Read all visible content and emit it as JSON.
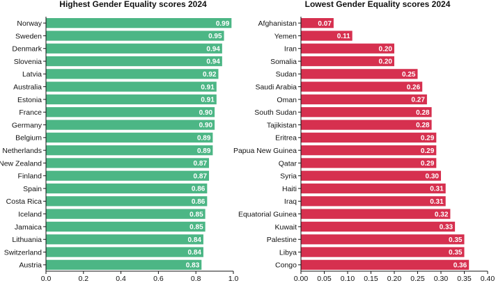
{
  "chart_data": [
    {
      "type": "bar",
      "orientation": "horizontal",
      "title": "Highest Gender Equality scores 2024",
      "categories": [
        "Norway",
        "Sweden",
        "Denmark",
        "Slovenia",
        "Latvia",
        "Australia",
        "Estonia",
        "France",
        "Germany",
        "Belgium",
        "Netherlands",
        "New Zealand",
        "Finland",
        "Spain",
        "Costa Rica",
        "Iceland",
        "Jamaica",
        "Lithuania",
        "Switzerland",
        "Austria"
      ],
      "values": [
        0.99,
        0.95,
        0.94,
        0.94,
        0.92,
        0.91,
        0.91,
        0.9,
        0.9,
        0.89,
        0.89,
        0.87,
        0.87,
        0.86,
        0.86,
        0.85,
        0.85,
        0.84,
        0.84,
        0.83
      ],
      "value_labels": [
        "0.99",
        "0.95",
        "0.94",
        "0.94",
        "0.92",
        "0.91",
        "0.91",
        "0.90",
        "0.90",
        "0.89",
        "0.89",
        "0.87",
        "0.87",
        "0.86",
        "0.86",
        "0.85",
        "0.85",
        "0.84",
        "0.84",
        "0.83"
      ],
      "xlim": [
        0,
        1.0
      ],
      "xticks": [
        0.0,
        0.2,
        0.4,
        0.6,
        0.8,
        1.0
      ],
      "xtick_labels": [
        "0.0",
        "0.2",
        "0.4",
        "0.6",
        "0.8",
        "1.0"
      ],
      "color": "#4cb685",
      "xlabel": "",
      "ylabel": ""
    },
    {
      "type": "bar",
      "orientation": "horizontal",
      "title": "Lowest Gender Equality scores 2024",
      "categories": [
        "Afghanistan",
        "Yemen",
        "Iran",
        "Somalia",
        "Sudan",
        "Saudi Arabia",
        "Oman",
        "South Sudan",
        "Tajikistan",
        "Eritrea",
        "Papua New Guinea",
        "Qatar",
        "Syria",
        "Haiti",
        "Iraq",
        "Equatorial Guinea",
        "Kuwait",
        "Palestine",
        "Libya",
        "Congo"
      ],
      "values": [
        0.07,
        0.11,
        0.2,
        0.2,
        0.25,
        0.26,
        0.27,
        0.28,
        0.28,
        0.29,
        0.29,
        0.29,
        0.3,
        0.31,
        0.31,
        0.32,
        0.33,
        0.35,
        0.35,
        0.36
      ],
      "value_labels": [
        "0.07",
        "0.11",
        "0.20",
        "0.20",
        "0.25",
        "0.26",
        "0.27",
        "0.28",
        "0.28",
        "0.29",
        "0.29",
        "0.29",
        "0.30",
        "0.31",
        "0.31",
        "0.32",
        "0.33",
        "0.35",
        "0.35",
        "0.36"
      ],
      "xlim": [
        0,
        0.4
      ],
      "xticks": [
        0.0,
        0.05,
        0.1,
        0.15,
        0.2,
        0.25,
        0.3,
        0.35,
        0.4
      ],
      "xtick_labels": [
        "0.00",
        "0.05",
        "0.10",
        "0.15",
        "0.20",
        "0.25",
        "0.30",
        "0.35",
        "0.40"
      ],
      "color": "#d6304f",
      "xlabel": "",
      "ylabel": ""
    }
  ]
}
